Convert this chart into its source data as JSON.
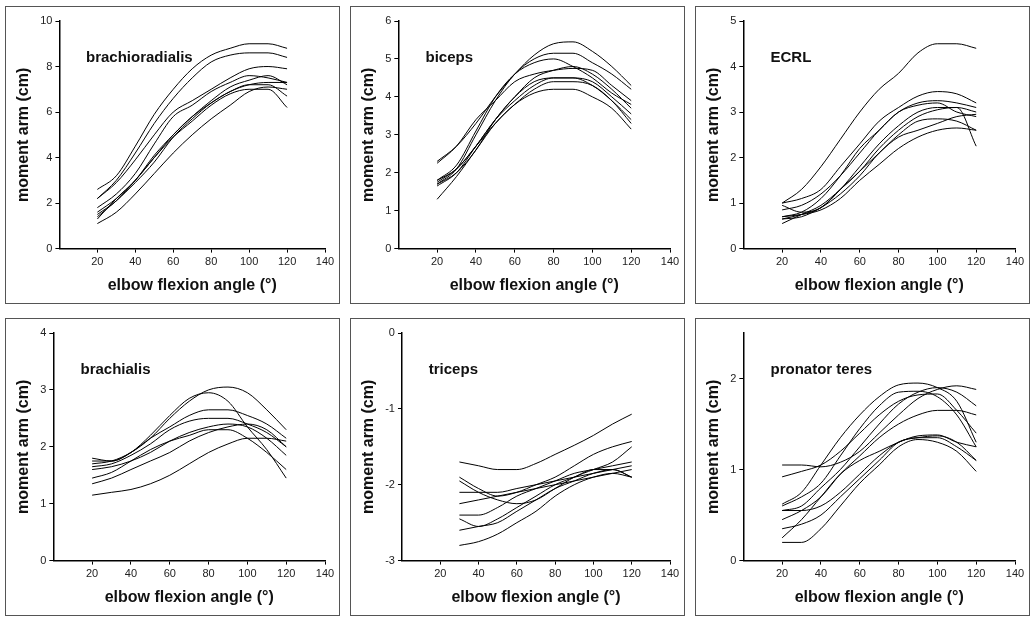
{
  "chart_data": [
    {
      "type": "line",
      "title": "brachioradialis",
      "xlabel": "elbow flexion angle (°)",
      "ylabel": "moment arm (cm)",
      "xlim": [
        0,
        140
      ],
      "xticks": [
        20,
        40,
        60,
        80,
        100,
        120,
        140
      ],
      "ylim": [
        0,
        10
      ],
      "yticks": [
        0,
        2,
        4,
        6,
        8,
        10
      ],
      "marker": "none",
      "x": [
        20,
        30,
        40,
        50,
        60,
        70,
        80,
        90,
        100,
        110,
        120
      ],
      "series": [
        {
          "color": "#000000",
          "values": [
            2.6,
            3.2,
            4.5,
            5.9,
            7.0,
            7.9,
            8.5,
            8.8,
            9.0,
            9.0,
            8.8
          ]
        },
        {
          "color": "#000000",
          "values": [
            2.2,
            3.0,
            4.2,
            5.5,
            6.6,
            7.5,
            8.2,
            8.5,
            8.6,
            8.6,
            8.4
          ]
        },
        {
          "color": "#000000",
          "values": [
            2.2,
            2.9,
            3.9,
            5.0,
            6.0,
            6.5,
            7.0,
            7.5,
            7.9,
            8.0,
            7.9
          ]
        },
        {
          "color": "#000000",
          "values": [
            1.8,
            2.4,
            3.3,
            4.6,
            5.8,
            6.3,
            6.9,
            7.3,
            7.6,
            7.5,
            7.3
          ]
        },
        {
          "color": "#000000",
          "values": [
            1.6,
            2.2,
            3.0,
            4.1,
            5.0,
            5.8,
            6.5,
            7.1,
            7.4,
            7.6,
            7.2
          ]
        },
        {
          "color": "#000000",
          "values": [
            1.5,
            2.1,
            3.0,
            4.0,
            5.0,
            5.8,
            6.4,
            6.9,
            7.2,
            7.2,
            6.7
          ]
        },
        {
          "color": "#000000",
          "values": [
            1.3,
            2.2,
            3.0,
            4.0,
            4.9,
            5.6,
            6.3,
            6.8,
            7.0,
            7.0,
            6.2
          ]
        },
        {
          "color": "#000000",
          "values": [
            1.1,
            1.6,
            2.4,
            3.3,
            4.2,
            5.0,
            5.7,
            6.3,
            6.9,
            7.1,
            7.0
          ]
        },
        {
          "color": "#000000",
          "values": [
            1.4,
            2.1,
            2.9,
            3.8,
            4.9,
            5.7,
            6.4,
            6.9,
            7.2,
            7.3,
            7.3
          ]
        }
      ]
    },
    {
      "type": "line",
      "title": "biceps",
      "xlabel": "elbow flexion angle (°)",
      "ylabel": "moment arm (cm)",
      "xlim": [
        0,
        140
      ],
      "xticks": [
        20,
        40,
        60,
        80,
        100,
        120,
        140
      ],
      "ylim": [
        0,
        6
      ],
      "yticks": [
        0,
        1,
        2,
        3,
        4,
        5,
        6
      ],
      "marker": "none",
      "x": [
        20,
        30,
        40,
        50,
        60,
        70,
        80,
        90,
        100,
        110,
        120
      ],
      "series": [
        {
          "color": "#000000",
          "values": [
            2.3,
            2.7,
            3.3,
            4.0,
            4.6,
            5.1,
            5.4,
            5.45,
            5.2,
            4.8,
            4.3
          ]
        },
        {
          "color": "#000000",
          "values": [
            1.7,
            2.1,
            3.0,
            3.9,
            4.6,
            5.0,
            5.15,
            5.15,
            4.9,
            4.6,
            4.2
          ]
        },
        {
          "color": "#000000",
          "values": [
            1.8,
            2.2,
            3.1,
            4.0,
            4.6,
            4.9,
            5.0,
            4.8,
            4.5,
            4.1,
            3.8
          ]
        },
        {
          "color": "#000000",
          "values": [
            2.25,
            2.7,
            3.4,
            3.9,
            4.4,
            4.6,
            4.7,
            4.75,
            4.7,
            4.3,
            3.9
          ]
        },
        {
          "color": "#000000",
          "values": [
            1.7,
            2.0,
            2.6,
            3.4,
            4.0,
            4.5,
            4.7,
            4.8,
            4.6,
            4.2,
            3.7
          ]
        },
        {
          "color": "#000000",
          "values": [
            1.65,
            2.0,
            2.7,
            3.4,
            4.0,
            4.4,
            4.5,
            4.5,
            4.3,
            3.9,
            3.4
          ]
        },
        {
          "color": "#000000",
          "values": [
            1.3,
            1.9,
            2.6,
            3.3,
            3.8,
            4.2,
            4.4,
            4.4,
            4.3,
            3.9,
            3.3
          ]
        },
        {
          "color": "#000000",
          "values": [
            1.8,
            2.1,
            2.7,
            3.3,
            3.8,
            4.1,
            4.2,
            4.2,
            4.0,
            3.7,
            3.15
          ]
        },
        {
          "color": "#000000",
          "values": [
            1.75,
            2.1,
            2.7,
            3.4,
            3.9,
            4.3,
            4.5,
            4.5,
            4.4,
            4.0,
            3.55
          ]
        }
      ]
    },
    {
      "type": "line",
      "title": "ECRL",
      "xlabel": "elbow flexion angle (°)",
      "ylabel": "moment arm (cm)",
      "xlim": [
        0,
        140
      ],
      "xticks": [
        20,
        40,
        60,
        80,
        100,
        120,
        140
      ],
      "ylim": [
        0,
        5
      ],
      "yticks": [
        0,
        1,
        2,
        3,
        4,
        5
      ],
      "marker": "none",
      "x": [
        20,
        30,
        40,
        50,
        60,
        70,
        80,
        90,
        100,
        110,
        120
      ],
      "series": [
        {
          "color": "#000000",
          "values": [
            1.0,
            1.3,
            1.8,
            2.4,
            3.0,
            3.5,
            3.85,
            4.3,
            4.5,
            4.5,
            4.4
          ]
        },
        {
          "color": "#000000",
          "values": [
            1.0,
            1.1,
            1.3,
            1.8,
            2.3,
            2.8,
            3.1,
            3.35,
            3.45,
            3.4,
            3.2
          ]
        },
        {
          "color": "#000000",
          "values": [
            0.85,
            0.95,
            1.2,
            1.6,
            2.1,
            2.6,
            3.0,
            3.2,
            3.25,
            3.2,
            3.1
          ]
        },
        {
          "color": "#000000",
          "values": [
            0.7,
            0.8,
            1.1,
            1.6,
            2.2,
            2.6,
            3.0,
            3.15,
            3.2,
            3.0,
            2.9
          ]
        },
        {
          "color": "#000000",
          "values": [
            0.95,
            0.8,
            0.9,
            1.3,
            1.8,
            2.3,
            2.7,
            3.0,
            3.1,
            3.1,
            2.25
          ]
        },
        {
          "color": "#000000",
          "values": [
            0.65,
            0.75,
            0.9,
            1.3,
            1.7,
            2.2,
            2.6,
            2.9,
            3.05,
            3.1,
            3.0
          ]
        },
        {
          "color": "#000000",
          "values": [
            0.55,
            0.75,
            0.95,
            1.3,
            1.7,
            2.1,
            2.5,
            2.8,
            2.85,
            2.8,
            2.6
          ]
        },
        {
          "color": "#000000",
          "values": [
            0.7,
            0.75,
            0.85,
            1.1,
            1.5,
            1.85,
            2.2,
            2.45,
            2.6,
            2.65,
            2.6
          ]
        },
        {
          "color": "#000000",
          "values": [
            0.65,
            0.7,
            0.9,
            1.2,
            1.6,
            2.1,
            2.45,
            2.6,
            2.75,
            2.9,
            2.95
          ]
        }
      ]
    },
    {
      "type": "line",
      "title": "brachialis",
      "xlabel": "elbow flexion angle (°)",
      "ylabel": "moment arm (cm)",
      "xlim": [
        0,
        140
      ],
      "xticks": [
        20,
        40,
        60,
        80,
        100,
        120,
        140
      ],
      "ylim": [
        0,
        4
      ],
      "yticks": [
        0,
        1,
        2,
        3,
        4
      ],
      "marker": "none",
      "x": [
        20,
        30,
        40,
        50,
        60,
        70,
        80,
        90,
        100,
        110,
        120
      ],
      "series": [
        {
          "color": "#000000",
          "values": [
            1.8,
            1.75,
            1.9,
            2.15,
            2.5,
            2.8,
            3.0,
            3.05,
            2.95,
            2.65,
            2.3
          ]
        },
        {
          "color": "#000000",
          "values": [
            1.75,
            1.75,
            1.9,
            2.2,
            2.55,
            2.85,
            2.95,
            2.8,
            2.35,
            1.95,
            1.45
          ]
        },
        {
          "color": "#000000",
          "values": [
            1.7,
            1.75,
            1.9,
            2.15,
            2.35,
            2.55,
            2.65,
            2.65,
            2.55,
            2.4,
            2.15
          ]
        },
        {
          "color": "#000000",
          "values": [
            1.65,
            1.7,
            1.85,
            2.05,
            2.3,
            2.45,
            2.5,
            2.5,
            2.4,
            2.25,
            2.0
          ]
        },
        {
          "color": "#000000",
          "values": [
            1.6,
            1.65,
            1.75,
            1.9,
            2.1,
            2.25,
            2.35,
            2.4,
            2.35,
            2.15,
            1.85
          ]
        },
        {
          "color": "#000000",
          "values": [
            1.45,
            1.55,
            1.75,
            1.95,
            2.1,
            2.2,
            2.3,
            2.3,
            2.15,
            1.9,
            1.6
          ]
        },
        {
          "color": "#000000",
          "values": [
            1.35,
            1.45,
            1.6,
            1.75,
            1.9,
            2.1,
            2.25,
            2.35,
            2.4,
            2.3,
            2.0
          ]
        },
        {
          "color": "#000000",
          "values": [
            1.15,
            1.2,
            1.25,
            1.35,
            1.5,
            1.7,
            1.9,
            2.05,
            2.15,
            2.15,
            2.1
          ]
        }
      ]
    },
    {
      "type": "line",
      "title": "triceps",
      "xlabel": "elbow flexion angle (°)",
      "ylabel": "moment arm (cm)",
      "xlim": [
        0,
        140
      ],
      "xticks": [
        20,
        40,
        60,
        80,
        100,
        120,
        140
      ],
      "ylim": [
        -3,
        0
      ],
      "yticks": [
        -3,
        -2,
        -1,
        0
      ],
      "marker": "none",
      "x": [
        30,
        40,
        50,
        60,
        70,
        80,
        90,
        100,
        110,
        120
      ],
      "series": [
        {
          "color": "#000000",
          "values": [
            -1.7,
            -1.75,
            -1.8,
            -1.8,
            -1.72,
            -1.6,
            -1.48,
            -1.35,
            -1.2,
            -1.07
          ]
        },
        {
          "color": "#000000",
          "values": [
            -1.9,
            -2.05,
            -2.15,
            -2.1,
            -2.0,
            -1.9,
            -1.75,
            -1.6,
            -1.5,
            -1.43
          ]
        },
        {
          "color": "#000000",
          "values": [
            -1.95,
            -2.1,
            -2.2,
            -2.25,
            -2.2,
            -2.05,
            -1.9,
            -1.8,
            -1.7,
            -1.5
          ]
        },
        {
          "color": "#000000",
          "values": [
            -2.1,
            -2.1,
            -2.1,
            -2.05,
            -2.0,
            -1.95,
            -1.9,
            -1.85,
            -1.8,
            -1.75
          ]
        },
        {
          "color": "#000000",
          "values": [
            -2.25,
            -2.2,
            -2.15,
            -2.1,
            -2.05,
            -2.0,
            -1.95,
            -1.9,
            -1.85,
            -1.8
          ]
        },
        {
          "color": "#000000",
          "values": [
            -2.4,
            -2.4,
            -2.3,
            -2.15,
            -2.05,
            -1.95,
            -1.85,
            -1.8,
            -1.75,
            -1.7
          ]
        },
        {
          "color": "#000000",
          "values": [
            -2.45,
            -2.55,
            -2.45,
            -2.3,
            -2.15,
            -2.0,
            -1.9,
            -1.8,
            -1.8,
            -1.9
          ]
        },
        {
          "color": "#000000",
          "values": [
            -2.6,
            -2.55,
            -2.5,
            -2.35,
            -2.2,
            -2.05,
            -1.95,
            -1.85,
            -1.8,
            -1.9
          ]
        },
        {
          "color": "#000000",
          "values": [
            -2.8,
            -2.75,
            -2.65,
            -2.5,
            -2.35,
            -2.15,
            -2.0,
            -1.9,
            -1.85,
            -1.9
          ]
        }
      ]
    },
    {
      "type": "line",
      "title": "pronator teres",
      "xlabel": "elbow flexion angle (°)",
      "ylabel": "moment arm (cm)",
      "xlim": [
        0,
        140
      ],
      "xticks": [
        20,
        40,
        60,
        80,
        100,
        120,
        140
      ],
      "ylim": [
        0,
        2.5
      ],
      "yticks": [
        0,
        1,
        2
      ],
      "marker": "none",
      "x": [
        20,
        30,
        40,
        50,
        60,
        70,
        80,
        90,
        100,
        110,
        120
      ],
      "series": [
        {
          "color": "#000000",
          "values": [
            1.05,
            1.05,
            1.03,
            1.08,
            1.2,
            1.4,
            1.6,
            1.78,
            1.88,
            1.92,
            1.88
          ]
        },
        {
          "color": "#000000",
          "values": [
            0.92,
            0.98,
            1.05,
            1.2,
            1.4,
            1.6,
            1.75,
            1.82,
            1.83,
            1.65,
            1.4
          ]
        },
        {
          "color": "#000000",
          "values": [
            0.62,
            0.75,
            1.05,
            1.35,
            1.6,
            1.8,
            1.93,
            1.95,
            1.9,
            1.75,
            1.3
          ]
        },
        {
          "color": "#000000",
          "values": [
            0.6,
            0.7,
            0.85,
            1.15,
            1.45,
            1.7,
            1.85,
            1.86,
            1.8,
            1.6,
            1.25
          ]
        },
        {
          "color": "#000000",
          "values": [
            0.55,
            0.6,
            0.8,
            1.0,
            1.25,
            1.5,
            1.72,
            1.85,
            1.9,
            1.85,
            1.7
          ]
        },
        {
          "color": "#000000",
          "values": [
            0.45,
            0.55,
            0.7,
            0.95,
            1.15,
            1.35,
            1.5,
            1.6,
            1.65,
            1.65,
            1.6
          ]
        },
        {
          "color": "#000000",
          "values": [
            0.35,
            0.4,
            0.5,
            0.7,
            0.9,
            1.1,
            1.3,
            1.35,
            1.37,
            1.3,
            1.1
          ]
        },
        {
          "color": "#000000",
          "values": [
            0.25,
            0.45,
            0.7,
            0.95,
            1.1,
            1.2,
            1.3,
            1.37,
            1.38,
            1.3,
            1.25
          ]
        },
        {
          "color": "#000000",
          "values": [
            0.2,
            0.2,
            0.35,
            0.6,
            0.85,
            1.05,
            1.25,
            1.33,
            1.3,
            1.2,
            0.98
          ]
        },
        {
          "color": "#000000",
          "values": [
            0.55,
            0.55,
            0.6,
            0.75,
            0.95,
            1.15,
            1.3,
            1.35,
            1.35,
            1.25,
            1.1
          ]
        }
      ]
    }
  ]
}
